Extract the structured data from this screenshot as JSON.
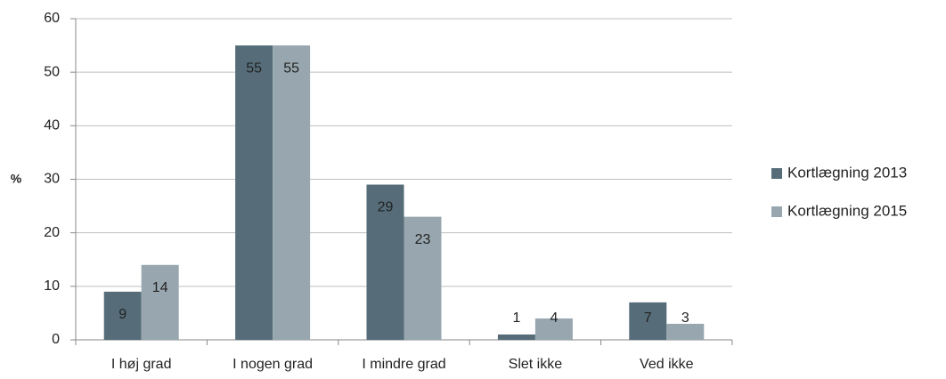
{
  "chart_data": {
    "type": "bar",
    "y_label": "%",
    "categories": [
      "I høj grad",
      "I nogen grad",
      "I mindre grad",
      "Slet ikke",
      "Ved ikke"
    ],
    "series": [
      {
        "name": "Kortlægning 2013",
        "color": "#566d79",
        "values": [
          9,
          55,
          29,
          1,
          7
        ]
      },
      {
        "name": "Kortlægning 2015",
        "color": "#98a7af",
        "values": [
          14,
          55,
          23,
          4,
          3
        ]
      }
    ],
    "ylim": [
      0,
      60
    ],
    "yticks": [
      0,
      10,
      20,
      30,
      40,
      50,
      60
    ],
    "grid": true,
    "legend": "right"
  }
}
